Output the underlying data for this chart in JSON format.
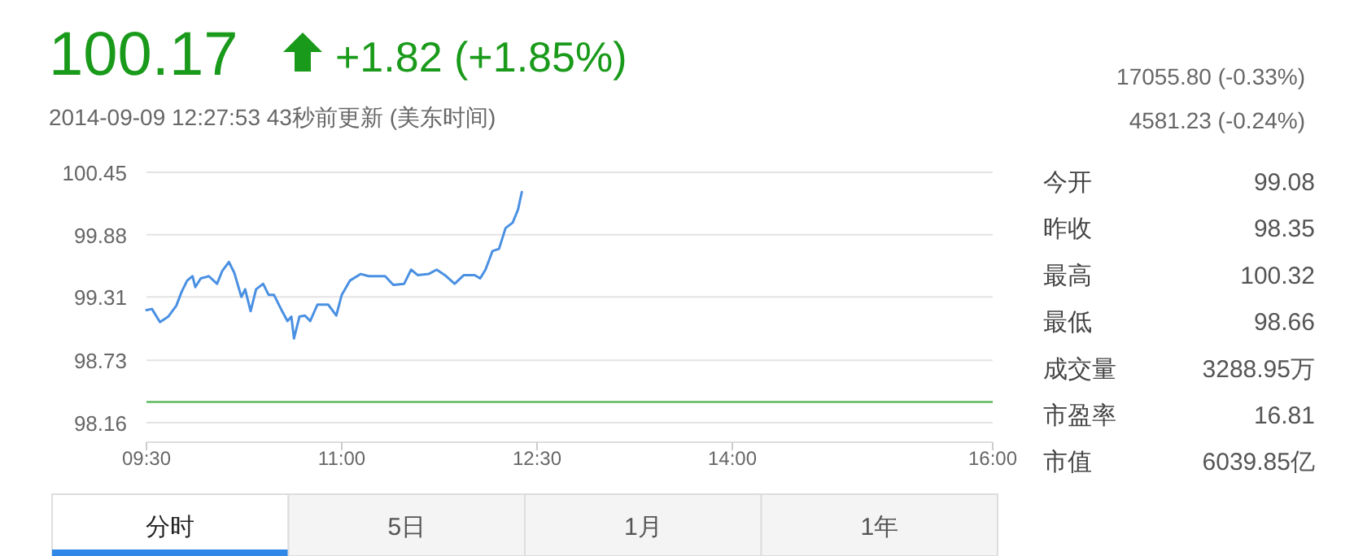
{
  "chart_data": {
    "type": "line",
    "x": [
      9.5,
      9.542,
      9.604,
      9.667,
      9.729,
      9.771,
      9.813,
      9.854,
      9.875,
      9.917,
      9.979,
      10.042,
      10.083,
      10.133,
      10.175,
      10.229,
      10.258,
      10.3,
      10.342,
      10.396,
      10.438,
      10.479,
      10.542,
      10.583,
      10.613,
      10.633,
      10.675,
      10.717,
      10.758,
      10.813,
      10.896,
      10.958,
      11.0,
      11.063,
      11.146,
      11.208,
      11.333,
      11.396,
      11.479,
      11.533,
      11.583,
      11.667,
      11.729,
      11.792,
      11.867,
      11.938,
      12.021,
      12.063,
      12.104,
      12.158,
      12.208,
      12.258,
      12.313,
      12.354,
      12.383
    ],
    "series": [
      {
        "color": "#4a90e2",
        "values": [
          99.19,
          99.2,
          99.08,
          99.13,
          99.23,
          99.36,
          99.46,
          99.5,
          99.4,
          99.48,
          99.5,
          99.43,
          99.55,
          99.63,
          99.53,
          99.31,
          99.38,
          99.18,
          99.38,
          99.43,
          99.33,
          99.33,
          99.18,
          99.09,
          99.13,
          98.93,
          99.13,
          99.14,
          99.09,
          99.24,
          99.24,
          99.14,
          99.33,
          99.46,
          99.52,
          99.5,
          99.5,
          99.42,
          99.43,
          99.56,
          99.51,
          99.52,
          99.56,
          99.51,
          99.43,
          99.51,
          99.51,
          99.48,
          99.56,
          99.73,
          99.75,
          99.94,
          99.99,
          100.11,
          100.27
        ]
      }
    ],
    "xlim": [
      9.5,
      16
    ],
    "xticks": [
      {
        "value": 9.5,
        "label": "09:30"
      },
      {
        "value": 11,
        "label": "11:00"
      },
      {
        "value": 12.5,
        "label": "12:30"
      },
      {
        "value": 14,
        "label": "14:00"
      },
      {
        "value": 16,
        "label": "16:00"
      }
    ],
    "ylim": [
      98.16,
      100.45
    ],
    "yticks": [
      98.16,
      98.73,
      99.31,
      99.88,
      100.45
    ],
    "grid": "y",
    "ref_lines": [
      {
        "axis": "y",
        "value": 98.35,
        "label": null,
        "color": "#5cb85c"
      }
    ],
    "annotations": [
      "100.17",
      "+1.82 (+1.85%)",
      "2014-09-09 12:27:53  43秒前更新 (美东时间)",
      "17055.80 (-0.33%)",
      "4581.23 (-0.24%)",
      "今开",
      "99.08",
      "昨收",
      "98.35",
      "最高",
      "100.32",
      "最低",
      "98.66",
      "成交量",
      "3288.95万",
      "市盈率",
      "16.81",
      "市值",
      "6039.85亿",
      "分时",
      "5日",
      "1月",
      "1年"
    ]
  }
}
